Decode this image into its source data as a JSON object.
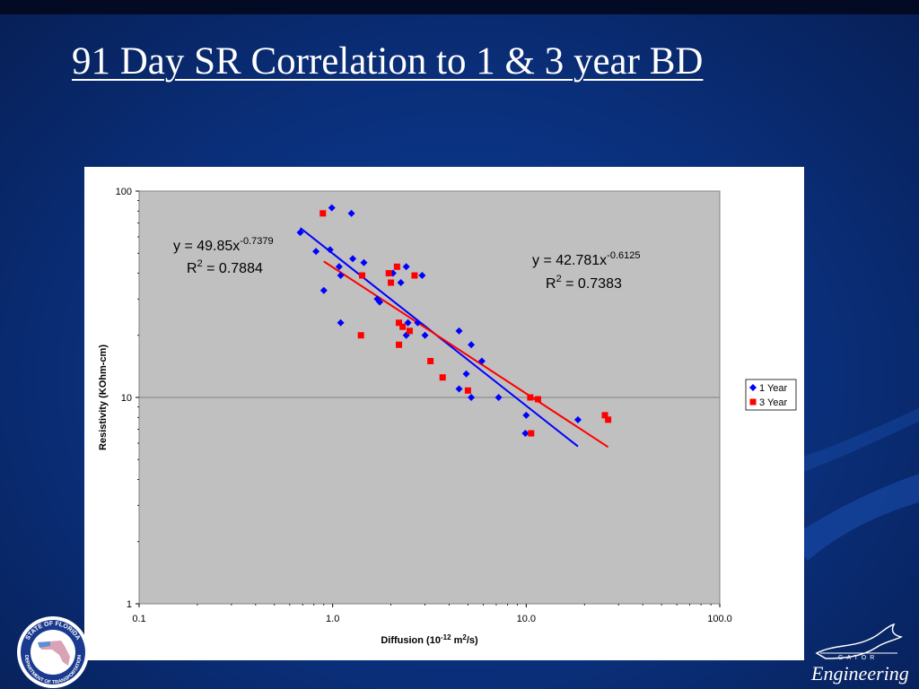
{
  "slide": {
    "title": "91 Day SR Correlation to 1 & 3 year BD"
  },
  "colors": {
    "series_1year": "#0000ff",
    "series_3year": "#ff0000",
    "plot_bg": "#c0c0c0",
    "background": "#0a2f7a"
  },
  "logos": {
    "fdot": {
      "top_text": "STATE OF FLORIDA",
      "bottom_text": "DEPARTMENT OF TRANSPORTATION"
    },
    "gator": {
      "small_text": "GATOR",
      "name": "Engineering"
    }
  },
  "chart_data": {
    "type": "scatter",
    "x_scale": "log",
    "y_scale": "log",
    "xlabel_main": "Diffusion (10",
    "xlabel_sup1": "-12",
    "xlabel_mid": " m",
    "xlabel_sup2": "2",
    "xlabel_end": "/s)",
    "ylabel": "Resistivity (KOhm-cm)",
    "xlim": [
      0.1,
      100
    ],
    "ylim": [
      1,
      100
    ],
    "x_ticks": [
      "0.1",
      "1.0",
      "10.0",
      "100.0"
    ],
    "y_ticks": [
      "1",
      "10",
      "100"
    ],
    "grid": "horizontal major lines",
    "legend_position": "right",
    "series": [
      {
        "name": "1 Year",
        "marker": "diamond",
        "color": "#0000ff",
        "points": [
          [
            0.68,
            63
          ],
          [
            0.82,
            51
          ],
          [
            0.9,
            33
          ],
          [
            0.97,
            52
          ],
          [
            0.99,
            83
          ],
          [
            1.1,
            23
          ],
          [
            1.08,
            43
          ],
          [
            1.1,
            39
          ],
          [
            1.25,
            78
          ],
          [
            1.27,
            47
          ],
          [
            1.45,
            45
          ],
          [
            1.7,
            30
          ],
          [
            1.75,
            29
          ],
          [
            2.05,
            40
          ],
          [
            2.25,
            36
          ],
          [
            2.4,
            43
          ],
          [
            2.4,
            20
          ],
          [
            2.45,
            23
          ],
          [
            2.75,
            23
          ],
          [
            2.9,
            39
          ],
          [
            3.0,
            20
          ],
          [
            4.5,
            21
          ],
          [
            4.9,
            13
          ],
          [
            5.2,
            18
          ],
          [
            5.9,
            15
          ],
          [
            4.5,
            11
          ],
          [
            5.2,
            10
          ],
          [
            7.2,
            10
          ],
          [
            10.0,
            8.2
          ],
          [
            9.9,
            6.7
          ],
          [
            18.5,
            7.8
          ]
        ],
        "trendline": {
          "equation": "y = 49.85x",
          "exponent": "-0.7379",
          "r2_label": "R",
          "r2_sup": "2",
          "r2_value": " = 0.7884",
          "a": 49.85,
          "b": -0.7379,
          "x_range": [
            0.68,
            18.5
          ]
        }
      },
      {
        "name": "3 Year",
        "marker": "square",
        "color": "#ff0000",
        "points": [
          [
            0.89,
            78
          ],
          [
            1.4,
            20
          ],
          [
            1.42,
            39
          ],
          [
            1.95,
            40
          ],
          [
            2.0,
            36
          ],
          [
            2.15,
            43
          ],
          [
            2.2,
            23
          ],
          [
            2.3,
            22
          ],
          [
            2.2,
            18
          ],
          [
            2.5,
            21
          ],
          [
            2.65,
            39
          ],
          [
            3.2,
            15
          ],
          [
            3.7,
            12.5
          ],
          [
            5.0,
            10.8
          ],
          [
            10.5,
            10
          ],
          [
            11.5,
            9.8
          ],
          [
            10.6,
            6.7
          ],
          [
            25.5,
            8.2
          ],
          [
            26.5,
            7.8
          ]
        ],
        "trendline": {
          "equation": "y = 42.781x",
          "exponent": "-0.6125",
          "r2_label": "R",
          "r2_sup": "2",
          "r2_value": " = 0.7383",
          "a": 42.781,
          "b": -0.6125,
          "x_range": [
            0.9,
            26.5
          ]
        }
      }
    ]
  }
}
